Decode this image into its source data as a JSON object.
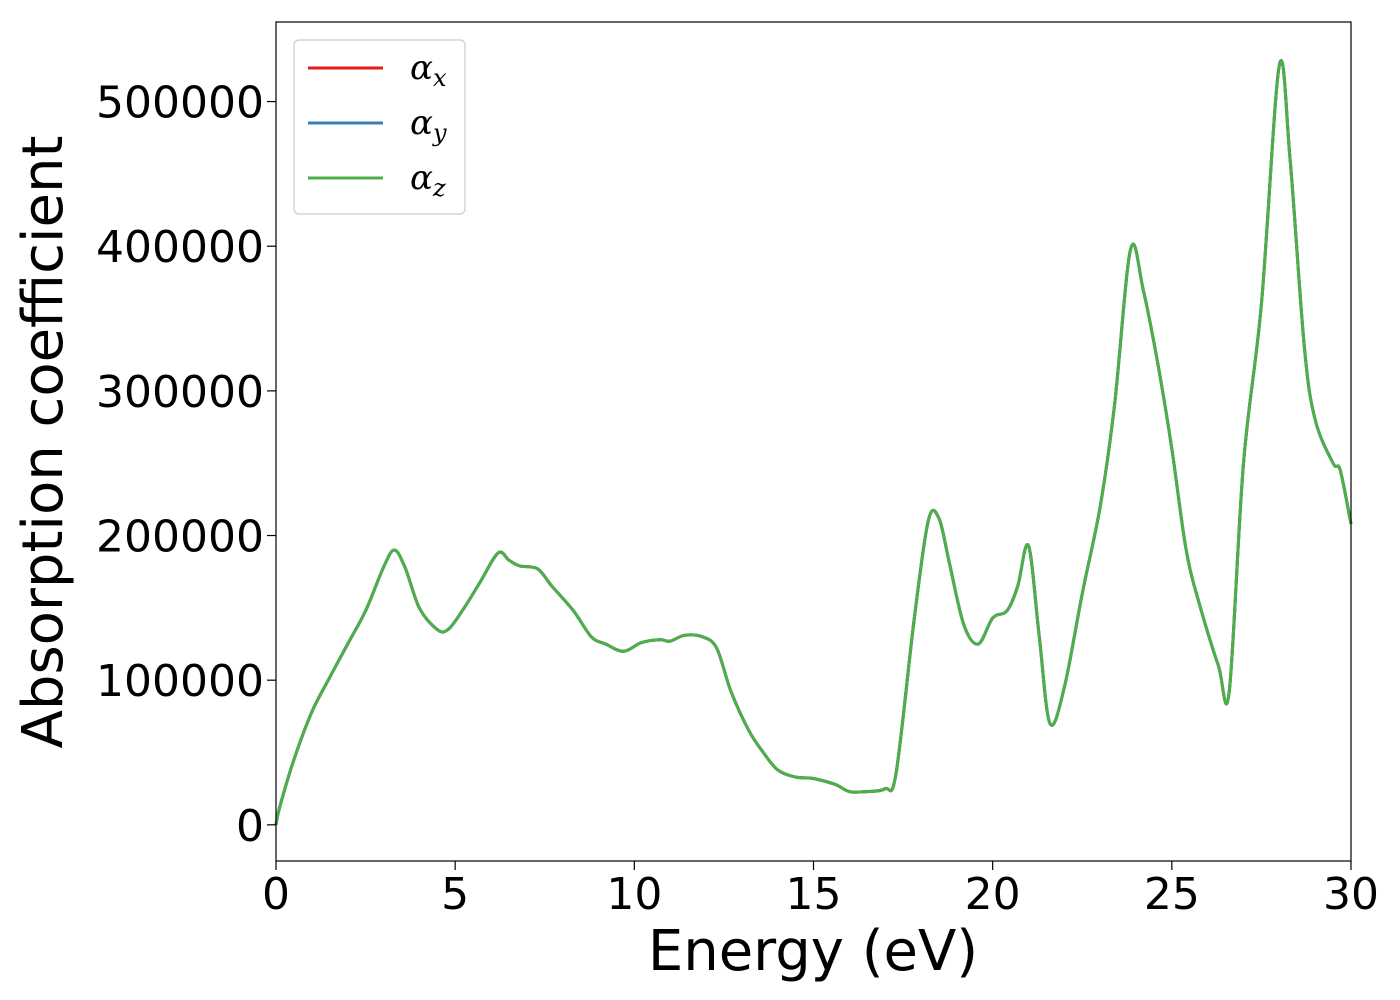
{
  "chart_data": {
    "type": "line",
    "title": "",
    "xlabel": "Energy (eV)",
    "ylabel": "Absorption coefficient",
    "xlim": [
      0,
      30
    ],
    "ylim": [
      -25000,
      555000
    ],
    "xticks": [
      0,
      5,
      10,
      15,
      20,
      25,
      30
    ],
    "xtick_labels": [
      "0",
      "5",
      "10",
      "15",
      "20",
      "25",
      "30"
    ],
    "yticks": [
      0,
      100000,
      200000,
      300000,
      400000,
      500000
    ],
    "ytick_labels": [
      "0",
      "100000",
      "200000",
      "300000",
      "400000",
      "500000"
    ],
    "grid": false,
    "legend_position": "top-left",
    "x": [
      0,
      0.1,
      0.5,
      1,
      1.5,
      2,
      2.5,
      3,
      3.3,
      3.6,
      4,
      4.5,
      4.8,
      5.2,
      5.7,
      6.2,
      6.5,
      6.8,
      7.3,
      7.7,
      8.3,
      8.8,
      9.2,
      9.7,
      10.2,
      10.7,
      11,
      11.4,
      11.9,
      12.3,
      12.7,
      13.2,
      13.6,
      14,
      14.5,
      15,
      15.6,
      16,
      16.5,
      17,
      17.3,
      17.8,
      18.2,
      18.5,
      18.8,
      19.2,
      19.6,
      20,
      20.4,
      20.7,
      21,
      21.3,
      21.6,
      22,
      22.5,
      23,
      23.4,
      23.85,
      24.2,
      24.6,
      25,
      25.4,
      25.8,
      26.3,
      26.6,
      27,
      27.5,
      28,
      28.3,
      28.7,
      29,
      29.5,
      29.7,
      30
    ],
    "series": [
      {
        "name": "αx",
        "label_base": "α",
        "label_sub": "x",
        "color": "#e41a1c",
        "values": [
          0,
          12000,
          45000,
          78000,
          102000,
          125000,
          148000,
          178000,
          190000,
          178000,
          150000,
          135000,
          135000,
          148000,
          168000,
          188000,
          183000,
          179000,
          177000,
          165000,
          148000,
          130000,
          125000,
          120000,
          126000,
          128000,
          127000,
          131000,
          130000,
          122000,
          92000,
          65000,
          50000,
          38000,
          33000,
          32000,
          28000,
          23000,
          23000,
          25000,
          35000,
          140000,
          210000,
          212000,
          180000,
          138000,
          125000,
          143000,
          148000,
          165000,
          193000,
          130000,
          70000,
          95000,
          160000,
          220000,
          290000,
          398000,
          370000,
          320000,
          260000,
          190000,
          150000,
          110000,
          92000,
          250000,
          360000,
          525000,
          460000,
          330000,
          280000,
          250000,
          245000,
          208000
        ]
      },
      {
        "name": "αy",
        "label_base": "α",
        "label_sub": "y",
        "color": "#377eb8",
        "values": [
          0,
          12000,
          45000,
          78000,
          102000,
          125000,
          148000,
          178000,
          190000,
          178000,
          150000,
          135000,
          135000,
          148000,
          168000,
          188000,
          183000,
          179000,
          177000,
          165000,
          148000,
          130000,
          125000,
          120000,
          126000,
          128000,
          127000,
          131000,
          130000,
          122000,
          92000,
          65000,
          50000,
          38000,
          33000,
          32000,
          28000,
          23000,
          23000,
          25000,
          35000,
          140000,
          210000,
          212000,
          180000,
          138000,
          125000,
          143000,
          148000,
          165000,
          193000,
          130000,
          70000,
          95000,
          160000,
          220000,
          290000,
          398000,
          370000,
          320000,
          260000,
          190000,
          150000,
          110000,
          92000,
          250000,
          360000,
          525000,
          460000,
          330000,
          280000,
          250000,
          245000,
          208000
        ]
      },
      {
        "name": "αz",
        "label_base": "α",
        "label_sub": "z",
        "color": "#4daf4a",
        "values": [
          0,
          12000,
          45000,
          78000,
          102000,
          125000,
          148000,
          178000,
          190000,
          178000,
          150000,
          135000,
          135000,
          148000,
          168000,
          188000,
          183000,
          179000,
          177000,
          165000,
          148000,
          130000,
          125000,
          120000,
          126000,
          128000,
          127000,
          131000,
          130000,
          122000,
          92000,
          65000,
          50000,
          38000,
          33000,
          32000,
          28000,
          23000,
          23000,
          25000,
          35000,
          140000,
          210000,
          212000,
          180000,
          138000,
          125000,
          143000,
          148000,
          165000,
          193000,
          130000,
          70000,
          95000,
          160000,
          220000,
          290000,
          398000,
          370000,
          320000,
          260000,
          190000,
          150000,
          110000,
          92000,
          250000,
          360000,
          525000,
          460000,
          330000,
          280000,
          250000,
          245000,
          208000
        ]
      }
    ]
  }
}
